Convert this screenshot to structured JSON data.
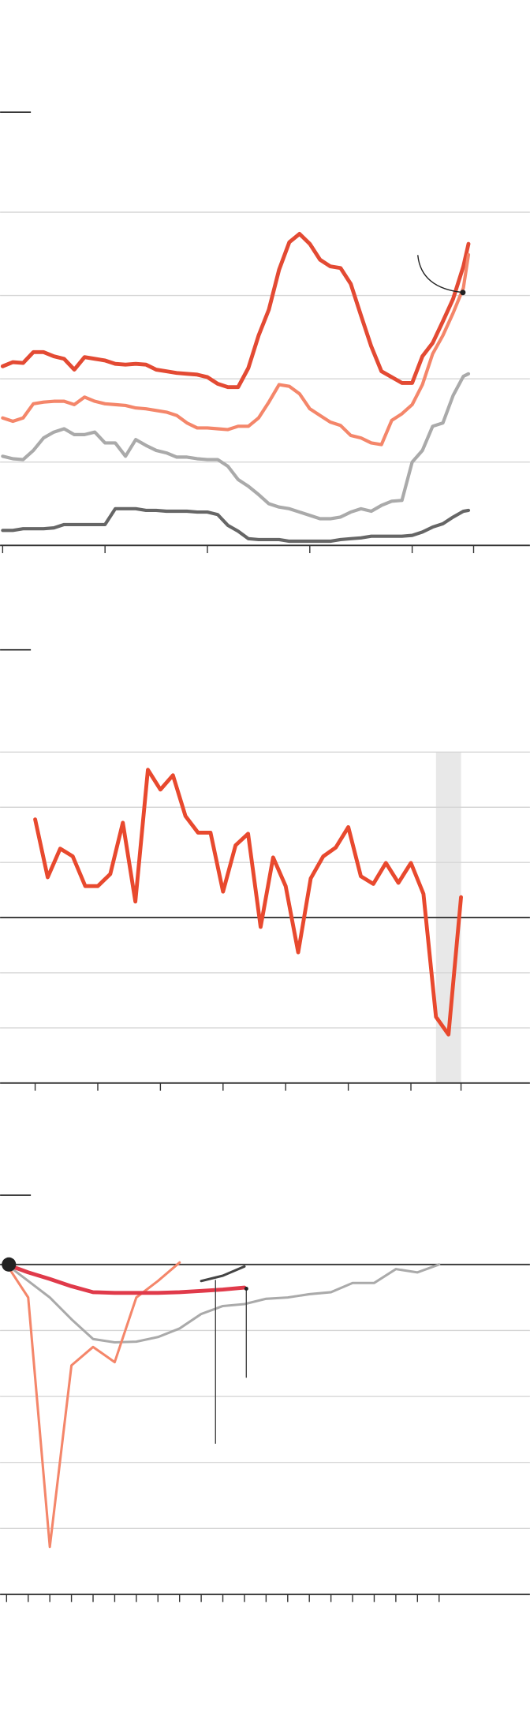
{
  "chart_data": [
    {
      "type": "line",
      "grid": true,
      "x": [
        0,
        2,
        4,
        6,
        8,
        10,
        12,
        14,
        16,
        18,
        20,
        22,
        24,
        26,
        28,
        30,
        32,
        34,
        36,
        38,
        40,
        42,
        44,
        46,
        48,
        50,
        52,
        54,
        56,
        58,
        60,
        62,
        64,
        66,
        68,
        70,
        72,
        74,
        76,
        78,
        80,
        82,
        84,
        86,
        88,
        90,
        91
      ],
      "xlim": [
        -0.5,
        103
      ],
      "xticks": [
        0,
        20,
        40,
        60,
        80,
        92
      ],
      "ylim": [
        0,
        4
      ],
      "yticks": [
        0,
        1,
        2,
        3,
        4
      ],
      "series": [
        {
          "color": "#e34a33",
          "width": 3.5,
          "values": [
            2.15,
            2.2,
            2.19,
            2.32,
            2.32,
            2.27,
            2.24,
            2.11,
            2.26,
            2.24,
            2.22,
            2.18,
            2.17,
            2.18,
            2.17,
            2.11,
            2.09,
            2.07,
            2.06,
            2.05,
            2.02,
            1.94,
            1.9,
            1.9,
            2.13,
            2.52,
            2.83,
            3.31,
            3.64,
            3.74,
            3.62,
            3.43,
            3.35,
            3.33,
            3.14,
            2.76,
            2.39,
            2.09,
            2.02,
            1.95,
            1.95,
            2.27,
            2.43,
            2.69,
            2.96,
            3.35,
            3.62
          ]
        },
        {
          "color": "#f4866a",
          "width": 3,
          "values": [
            1.53,
            1.49,
            1.53,
            1.7,
            1.72,
            1.73,
            1.73,
            1.69,
            1.78,
            1.73,
            1.7,
            1.69,
            1.68,
            1.65,
            1.64,
            1.62,
            1.6,
            1.56,
            1.47,
            1.41,
            1.41,
            1.4,
            1.39,
            1.43,
            1.43,
            1.53,
            1.72,
            1.93,
            1.91,
            1.82,
            1.64,
            1.56,
            1.48,
            1.44,
            1.32,
            1.29,
            1.23,
            1.21,
            1.5,
            1.58,
            1.69,
            1.93,
            2.3,
            2.52,
            2.79,
            3.09,
            3.49
          ]
        },
        {
          "color": "#aaaaaa",
          "width": 3,
          "values": [
            1.07,
            1.04,
            1.03,
            1.14,
            1.29,
            1.36,
            1.4,
            1.33,
            1.33,
            1.36,
            1.23,
            1.23,
            1.07,
            1.27,
            1.2,
            1.14,
            1.11,
            1.06,
            1.06,
            1.04,
            1.03,
            1.03,
            0.95,
            0.79,
            0.71,
            0.61,
            0.5,
            0.46,
            0.44,
            0.4,
            0.36,
            0.32,
            0.32,
            0.34,
            0.4,
            0.44,
            0.41,
            0.48,
            0.53,
            0.54,
            1.0,
            1.14,
            1.43,
            1.47,
            1.8,
            2.03,
            2.06
          ]
        },
        {
          "color": "#666666",
          "width": 3,
          "values": [
            0.18,
            0.18,
            0.2,
            0.2,
            0.2,
            0.21,
            0.25,
            0.25,
            0.25,
            0.25,
            0.25,
            0.44,
            0.44,
            0.44,
            0.42,
            0.42,
            0.41,
            0.41,
            0.41,
            0.4,
            0.4,
            0.37,
            0.24,
            0.17,
            0.08,
            0.07,
            0.07,
            0.07,
            0.05,
            0.05,
            0.05,
            0.05,
            0.05,
            0.07,
            0.08,
            0.09,
            0.11,
            0.11,
            0.11,
            0.11,
            0.12,
            0.16,
            0.22,
            0.26,
            0.34,
            0.41,
            0.42
          ]
        }
      ]
    },
    {
      "type": "line",
      "grid": true,
      "x": [
        0,
        1,
        2,
        3,
        4,
        5,
        6,
        7,
        8,
        9,
        10,
        11,
        12,
        13,
        14,
        15,
        16,
        17,
        18,
        19,
        20,
        21,
        22,
        23,
        24,
        25,
        26,
        27,
        28,
        29,
        30,
        31,
        32,
        33,
        34
      ],
      "xlim": [
        -2.8,
        39.5
      ],
      "xticks": [
        0,
        5,
        10,
        15,
        20,
        25,
        30,
        34
      ],
      "ylim": [
        -3,
        3
      ],
      "yticks": [
        -3,
        -2,
        -1,
        0,
        1,
        2,
        3
      ],
      "shade": [
        32,
        34
      ],
      "series": [
        {
          "color": "#e8492e",
          "width": 3.5,
          "values": [
            1.78,
            0.73,
            1.25,
            1.11,
            0.57,
            0.57,
            0.79,
            1.72,
            0.29,
            2.68,
            2.32,
            2.58,
            1.84,
            1.54,
            1.54,
            0.47,
            1.31,
            1.52,
            -0.17,
            1.09,
            0.57,
            -0.63,
            0.71,
            1.11,
            1.27,
            1.64,
            0.75,
            0.61,
            0.99,
            0.63,
            0.99,
            0.43,
            -1.8,
            -2.12,
            0.37
          ]
        }
      ]
    },
    {
      "type": "line",
      "grid": true,
      "x": [
        0,
        1,
        2,
        3,
        4,
        5,
        6,
        7,
        8,
        9,
        10,
        11,
        12,
        13,
        14,
        15,
        16,
        17,
        18,
        19,
        20
      ],
      "xlim": [
        -0.3,
        24.2
      ],
      "xticks": [
        0,
        1,
        2,
        3,
        4,
        5,
        6,
        7,
        8,
        9,
        10,
        11,
        12,
        13,
        14,
        15,
        16,
        17,
        18,
        19,
        20
      ],
      "ylim": [
        -5,
        0.2
      ],
      "yticks": [
        -5,
        -4,
        -3,
        -2,
        -1,
        0
      ],
      "series": [
        {
          "color": "#aaaaaa",
          "width": 2.2,
          "values": [
            0,
            -0.25,
            -0.5,
            -0.83,
            -1.13,
            -1.18,
            -1.17,
            -1.1,
            -0.97,
            -0.75,
            -0.63,
            -0.6,
            -0.52,
            -0.5,
            -0.45,
            -0.42,
            -0.28,
            -0.28,
            -0.07,
            -0.12,
            0
          ]
        },
        {
          "color": "#f4866a",
          "width": 2.2,
          "values": [
            0,
            -0.5,
            -4.28,
            -1.53,
            -1.25,
            -1.48,
            -0.5,
            -0.25,
            0.03,
            null,
            null,
            null,
            null,
            null,
            null,
            null,
            null,
            null,
            null,
            null,
            null
          ]
        },
        {
          "color": "#444444",
          "width": 2.2,
          "values": [
            null,
            null,
            null,
            null,
            null,
            null,
            null,
            null,
            null,
            -0.25,
            -0.17,
            -0.03,
            null,
            null,
            null,
            null,
            null,
            null,
            null,
            null,
            null
          ]
        },
        {
          "color": "#e03a4a",
          "width": 3.5,
          "values": [
            0,
            -0.12,
            -0.22,
            -0.33,
            -0.42,
            -0.43,
            -0.43,
            -0.43,
            -0.42,
            -0.4,
            -0.38,
            -0.35,
            null,
            null,
            null,
            null,
            null,
            null,
            null,
            null,
            null
          ]
        }
      ]
    }
  ]
}
